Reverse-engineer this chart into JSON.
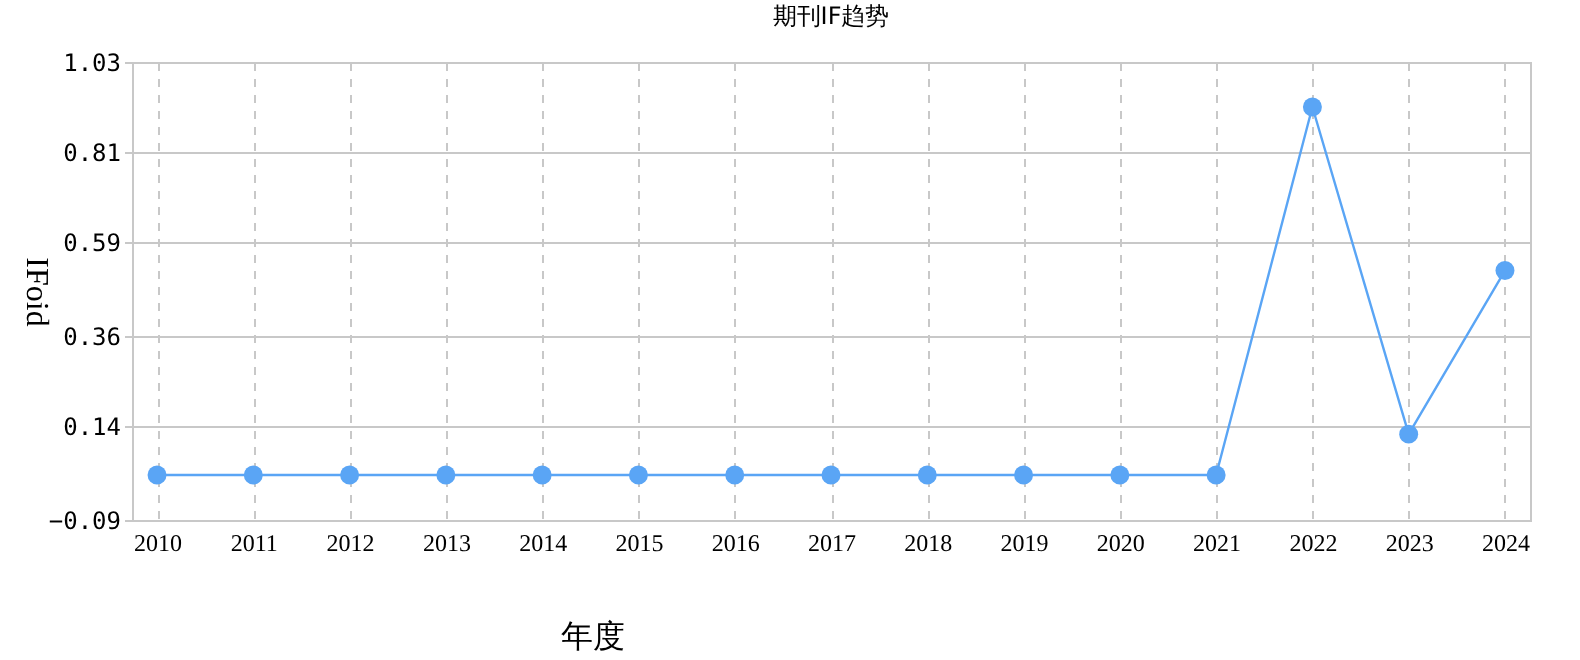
{
  "chart_data": {
    "type": "line",
    "title": "期刊IF趋势",
    "xlabel": "年度",
    "ylabel": "IFoid",
    "categories": [
      "2010",
      "2011",
      "2012",
      "2013",
      "2014",
      "2015",
      "2016",
      "2017",
      "2018",
      "2019",
      "2020",
      "2021",
      "2022",
      "2023",
      "2024"
    ],
    "series": [
      {
        "color": "#5aa5f5",
        "values": [
          0.02,
          0.02,
          0.02,
          0.02,
          0.02,
          0.02,
          0.02,
          0.02,
          0.02,
          0.02,
          0.02,
          0.02,
          0.92,
          0.12,
          0.52
        ]
      }
    ],
    "ylim": [
      -0.09,
      1.03
    ],
    "yticks": [
      -0.09,
      0.14,
      0.36,
      0.59,
      0.81,
      1.03
    ],
    "grid": true,
    "marker": "circle"
  }
}
